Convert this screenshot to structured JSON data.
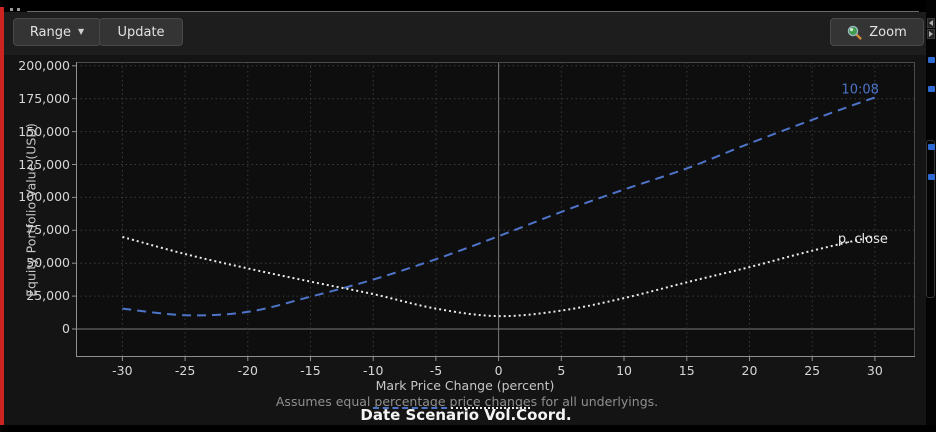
{
  "toolbar": {
    "range_label": "Range",
    "update_label": "Update",
    "zoom_label": "Zoom"
  },
  "chart_data": {
    "type": "line",
    "xlabel": "Mark Price Change (percent)",
    "ylabel": "Equity Portfolio Value (USD)",
    "note": "Assumes equal percentage price changes for all underlyings.",
    "footer": "Date Scenario Vol.Coord.",
    "x": [
      -30,
      -25,
      -20,
      -15,
      -10,
      -5,
      0,
      5,
      10,
      15,
      20,
      25,
      30
    ],
    "series": [
      {
        "name": "10:08",
        "color": "#4e74c9",
        "style": "dashed",
        "values": [
          15500,
          10500,
          13000,
          24500,
          37500,
          53000,
          70500,
          89000,
          106000,
          122000,
          141000,
          159000,
          176000
        ]
      },
      {
        "name": "p. close",
        "color": "#eaeaea",
        "style": "dotted",
        "values": [
          70000,
          57000,
          46000,
          36000,
          26500,
          15500,
          9800,
          14000,
          23500,
          35500,
          47000,
          59500,
          70500
        ]
      }
    ],
    "xlim": [
      -33.7,
      33.2
    ],
    "ylim": [
      -21300,
      202900
    ],
    "x_ticks": [
      -30,
      -25,
      -20,
      -15,
      -10,
      -5,
      0,
      5,
      10,
      15,
      20,
      25,
      30
    ],
    "x_tick_labels": [
      "-30",
      "-25",
      "-20",
      "-15",
      "-10",
      "-5",
      "0",
      "5",
      "10",
      "15",
      "20",
      "25",
      "30"
    ],
    "y_ticks": [
      0,
      25000,
      50000,
      75000,
      100000,
      125000,
      150000,
      175000,
      200000
    ],
    "y_tick_labels": [
      "0",
      "25,000",
      "50,000",
      "75,000",
      "100,000",
      "125,000",
      "150,000",
      "175,000",
      "200,000"
    ],
    "grid": true,
    "legend_position": "bottom"
  },
  "colors": {
    "accent_stripe": "#cc2323",
    "grid": "#3b3b3b",
    "zero_line": "#7a7a7a",
    "axis_line": "#8f8f8f",
    "plot_border": "#4a4a4a",
    "panel_mark_blue": "#2d6bd2"
  }
}
